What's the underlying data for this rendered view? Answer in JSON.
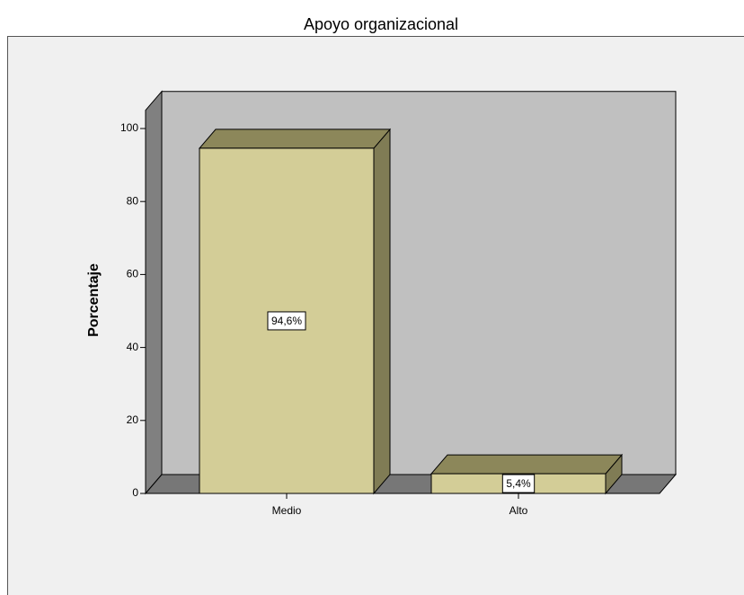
{
  "chart_data": {
    "type": "bar",
    "title": "Apoyo organizacional",
    "y_label": "Porcentaje",
    "categories": [
      "Medio",
      "Alto"
    ],
    "values": [
      94.6,
      5.4
    ],
    "value_labels": [
      "94,6%",
      "5,4%"
    ],
    "color": "#d3cd97",
    "ylim": [
      0,
      105
    ],
    "yticks": [
      0,
      20,
      40,
      60,
      80,
      100
    ]
  }
}
